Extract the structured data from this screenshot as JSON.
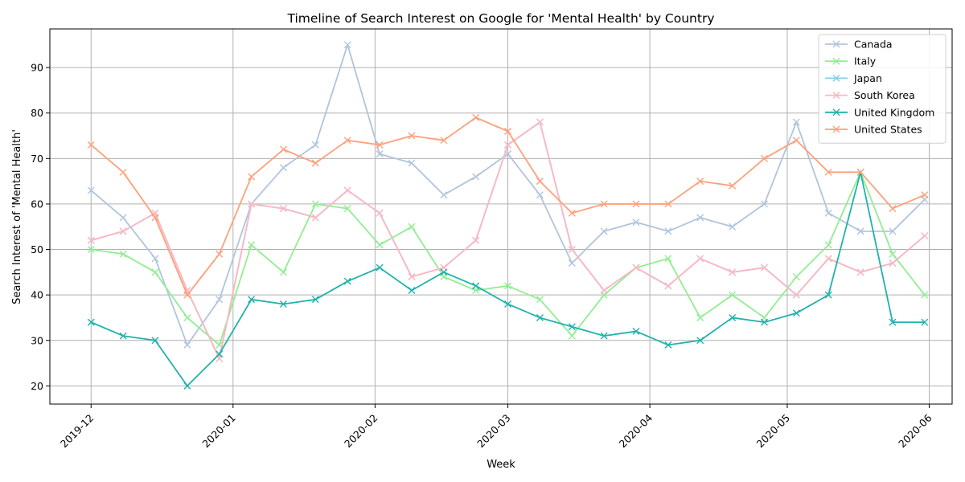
{
  "chart_data": {
    "type": "line",
    "title": "Timeline of Search Interest on Google for 'Mental Health' by Country",
    "xlabel": "Week",
    "ylabel": "Search Interest of 'Mental Health'",
    "x_range": [
      "2019-11-22",
      "2020-06-06"
    ],
    "ylim": [
      16,
      98.5
    ],
    "grid": true,
    "legend_position": "top-right",
    "marker": "x",
    "x": [
      "2019-12-01",
      "2019-12-08",
      "2019-12-15",
      "2019-12-22",
      "2019-12-29",
      "2020-01-05",
      "2020-01-12",
      "2020-01-19",
      "2020-01-26",
      "2020-02-02",
      "2020-02-09",
      "2020-02-16",
      "2020-02-23",
      "2020-03-01",
      "2020-03-08",
      "2020-03-15",
      "2020-03-22",
      "2020-03-29",
      "2020-04-05",
      "2020-04-12",
      "2020-04-19",
      "2020-04-26",
      "2020-05-03",
      "2020-05-10",
      "2020-05-17",
      "2020-05-24",
      "2020-05-31"
    ],
    "x_ticks": [
      {
        "date": "2019-12-01",
        "label": "2019-12"
      },
      {
        "date": "2020-01-01",
        "label": "2020-01"
      },
      {
        "date": "2020-02-01",
        "label": "2020-02"
      },
      {
        "date": "2020-03-01",
        "label": "2020-03"
      },
      {
        "date": "2020-04-01",
        "label": "2020-04"
      },
      {
        "date": "2020-05-01",
        "label": "2020-05"
      },
      {
        "date": "2020-06-01",
        "label": "2020-06"
      }
    ],
    "y_ticks": [
      20,
      30,
      40,
      50,
      60,
      70,
      80,
      90
    ],
    "series": [
      {
        "name": "Canada",
        "color": "#b0c4de",
        "values": [
          63,
          57,
          48,
          29,
          39,
          60,
          68,
          73,
          95,
          71,
          69,
          62,
          66,
          71,
          62,
          47,
          54,
          56,
          54,
          57,
          55,
          60,
          78,
          58,
          54,
          54,
          61
        ]
      },
      {
        "name": "Italy",
        "color": "#90ee90",
        "values": [
          50,
          49,
          45,
          35,
          29,
          51,
          45,
          60,
          59,
          51,
          55,
          44,
          41,
          42,
          39,
          31,
          40,
          46,
          48,
          35,
          40,
          35,
          44,
          51,
          67,
          49,
          40
        ]
      },
      {
        "name": "Japan",
        "color": "#87ceeb",
        "values": [
          52,
          54,
          58,
          41,
          26,
          60,
          59,
          57,
          63,
          58,
          44,
          46,
          52,
          73,
          78,
          50,
          41,
          46,
          42,
          48,
          45,
          46,
          40,
          48,
          45,
          47,
          53
        ]
      },
      {
        "name": "South Korea",
        "color": "#ffb6c1",
        "values": [
          52,
          54,
          58,
          41,
          26,
          60,
          59,
          57,
          63,
          58,
          44,
          46,
          52,
          73,
          78,
          50,
          41,
          46,
          42,
          48,
          45,
          46,
          40,
          48,
          45,
          47,
          53
        ]
      },
      {
        "name": "United Kingdom",
        "color": "#20b2aa",
        "values": [
          34,
          31,
          30,
          20,
          27,
          39,
          38,
          39,
          43,
          46,
          41,
          45,
          42,
          38,
          35,
          33,
          31,
          32,
          29,
          30,
          35,
          34,
          36,
          40,
          67,
          34,
          34
        ]
      },
      {
        "name": "United States",
        "color": "#ffa07a",
        "values": [
          73,
          67,
          57,
          40,
          49,
          66,
          72,
          69,
          74,
          73,
          75,
          74,
          79,
          76,
          65,
          58,
          60,
          60,
          60,
          65,
          64,
          70,
          74,
          67,
          67,
          59,
          62
        ]
      }
    ]
  }
}
